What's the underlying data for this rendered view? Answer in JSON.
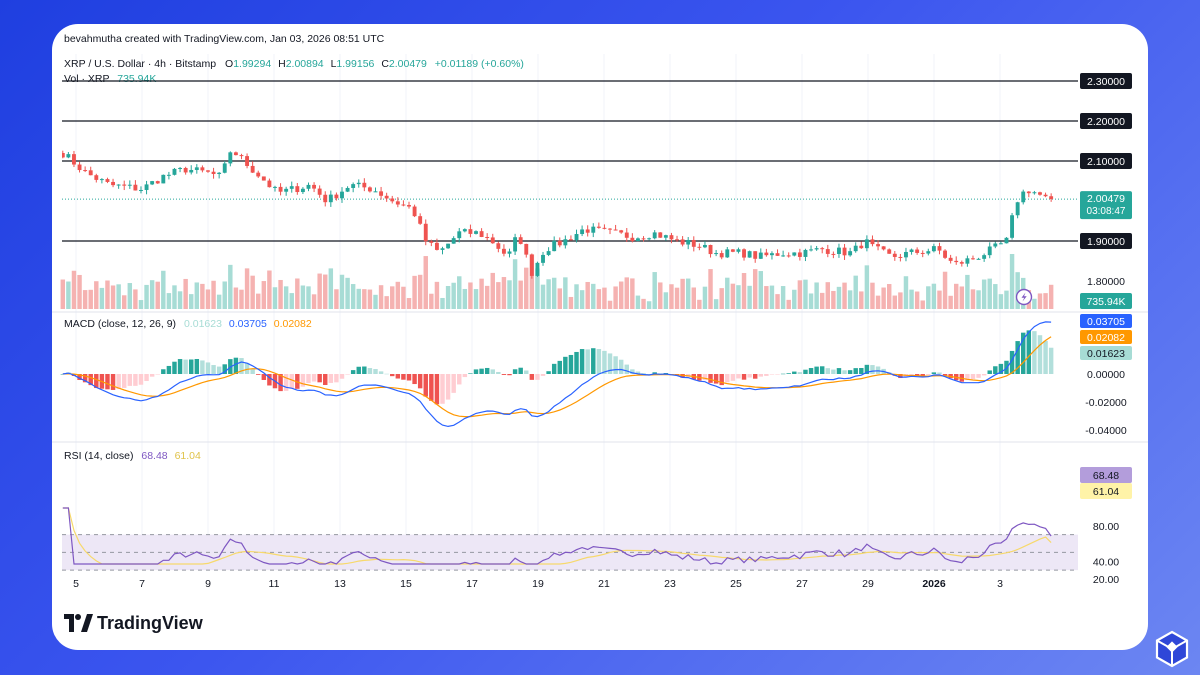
{
  "header": {
    "credit": "bevahmutha created with TradingView.com, Jan 03, 2026 08:51 UTC",
    "symbol": "XRP / U.S. Dollar · 4h · Bitstamp",
    "open_label": "O",
    "open": "1.99294",
    "high_label": "H",
    "high": "2.00894",
    "low_label": "L",
    "low": "1.99156",
    "close_label": "C",
    "close": "2.00479",
    "change": "+0.01189 (+0.60%)",
    "vol_label": "Vol · XRP",
    "vol_value": "735.94K"
  },
  "macd_header": {
    "label": "MACD (close, 12, 26, 9)",
    "hist": "0.01623",
    "macd": "0.03705",
    "signal": "0.02082"
  },
  "rsi_header": {
    "label": "RSI (14, close)",
    "rsi": "68.48",
    "ma": "61.04"
  },
  "price_badge": {
    "price": "2.00479",
    "countdown": "03:08:47"
  },
  "volume_badge": "735.94K",
  "macd_badges": {
    "macd": "0.03705",
    "signal": "0.02082",
    "hist": "0.01623"
  },
  "rsi_badges": {
    "rsi": "68.48",
    "ma": "61.04"
  },
  "brand": "TradingView",
  "colors": {
    "up": "#26a69a",
    "down": "#ef5350",
    "macd_line": "#2962ff",
    "signal_line": "#ff9800",
    "rsi_line": "#7e57c2",
    "rsi_ma": "#f7d96c",
    "rsi_band": "#ede7f6",
    "grid": "#f0f3fa"
  },
  "chart_data": [
    {
      "type": "candlestick",
      "ylim": [
        1.75,
        2.35
      ],
      "ytick_labels": [
        "2.30000",
        "2.20000",
        "2.10000",
        "1.90000",
        "1.80000"
      ],
      "yticks": [
        2.3,
        2.2,
        2.1,
        1.9,
        1.8
      ],
      "horizontal_levels": [
        2.3,
        2.2,
        2.1,
        1.9
      ],
      "last_price": 2.00479,
      "xtick_labels": [
        "5",
        "7",
        "9",
        "11",
        "13",
        "15",
        "17",
        "19",
        "21",
        "23",
        "25",
        "27",
        "29",
        "2026",
        "3"
      ],
      "x_range_days": [
        4.6,
        34.55
      ],
      "anchors": [
        {
          "day": 4.6,
          "price": 2.12
        },
        {
          "day": 5.3,
          "price": 2.07
        },
        {
          "day": 6.0,
          "price": 2.04
        },
        {
          "day": 7.0,
          "price": 2.03
        },
        {
          "day": 7.6,
          "price": 2.06
        },
        {
          "day": 8.3,
          "price": 2.08
        },
        {
          "day": 9.0,
          "price": 2.07
        },
        {
          "day": 9.4,
          "price": 2.06
        },
        {
          "day": 9.7,
          "price": 2.13
        },
        {
          "day": 10.2,
          "price": 2.09
        },
        {
          "day": 10.6,
          "price": 2.06
        },
        {
          "day": 11.1,
          "price": 2.02
        },
        {
          "day": 11.6,
          "price": 2.03
        },
        {
          "day": 12.1,
          "price": 2.04
        },
        {
          "day": 12.6,
          "price": 2.0
        },
        {
          "day": 13.3,
          "price": 2.04
        },
        {
          "day": 14.0,
          "price": 2.03
        },
        {
          "day": 14.6,
          "price": 2.0
        },
        {
          "day": 15.2,
          "price": 1.98
        },
        {
          "day": 15.6,
          "price": 1.9
        },
        {
          "day": 16.0,
          "price": 1.87
        },
        {
          "day": 16.6,
          "price": 1.92
        },
        {
          "day": 17.2,
          "price": 1.92
        },
        {
          "day": 17.6,
          "price": 1.9
        },
        {
          "day": 18.1,
          "price": 1.86
        },
        {
          "day": 18.4,
          "price": 1.92
        },
        {
          "day": 18.8,
          "price": 1.82
        },
        {
          "day": 19.2,
          "price": 1.88
        },
        {
          "day": 19.8,
          "price": 1.9
        },
        {
          "day": 20.4,
          "price": 1.93
        },
        {
          "day": 21.2,
          "price": 1.92
        },
        {
          "day": 21.9,
          "price": 1.91
        },
        {
          "day": 22.5,
          "price": 1.92
        },
        {
          "day": 23.2,
          "price": 1.9
        },
        {
          "day": 23.8,
          "price": 1.89
        },
        {
          "day": 24.4,
          "price": 1.87
        },
        {
          "day": 25.2,
          "price": 1.87
        },
        {
          "day": 25.7,
          "price": 1.86
        },
        {
          "day": 26.4,
          "price": 1.87
        },
        {
          "day": 27.0,
          "price": 1.87
        },
        {
          "day": 27.6,
          "price": 1.88
        },
        {
          "day": 28.5,
          "price": 1.87
        },
        {
          "day": 28.9,
          "price": 1.9
        },
        {
          "day": 29.2,
          "price": 1.88
        },
        {
          "day": 29.7,
          "price": 1.86
        },
        {
          "day": 30.3,
          "price": 1.87
        },
        {
          "day": 31.1,
          "price": 1.88
        },
        {
          "day": 31.6,
          "price": 1.84
        },
        {
          "day": 32.3,
          "price": 1.86
        },
        {
          "day": 32.8,
          "price": 1.88
        },
        {
          "day": 33.2,
          "price": 1.9
        },
        {
          "day": 33.5,
          "price": 2.0
        },
        {
          "day": 33.8,
          "price": 2.03
        },
        {
          "day": 34.1,
          "price": 2.02
        },
        {
          "day": 34.4,
          "price": 2.005
        }
      ]
    },
    {
      "type": "bar",
      "title": "Vol · XRP",
      "last_value": "735.94K"
    },
    {
      "type": "line",
      "title": "MACD (close, 12, 26, 9)",
      "ylim": [
        -0.045,
        0.045
      ],
      "yticks": [
        0.0,
        -0.02,
        -0.04
      ],
      "ytick_labels": [
        "0.00000",
        "-0.02000",
        "-0.04000"
      ],
      "series": [
        {
          "name": "MACD",
          "last": 0.03705
        },
        {
          "name": "Signal",
          "last": 0.02082
        },
        {
          "name": "Histogram",
          "last": 0.01623
        }
      ]
    },
    {
      "type": "line",
      "title": "RSI (14, close)",
      "ylim": [
        15,
        88
      ],
      "yticks": [
        80,
        40,
        20
      ],
      "ytick_labels": [
        "80.00",
        "40.00",
        "20.00"
      ],
      "bands": [
        70,
        50,
        30
      ],
      "series": [
        {
          "name": "RSI",
          "last": 68.48
        },
        {
          "name": "RSI-based MA",
          "last": 61.04
        }
      ]
    }
  ]
}
